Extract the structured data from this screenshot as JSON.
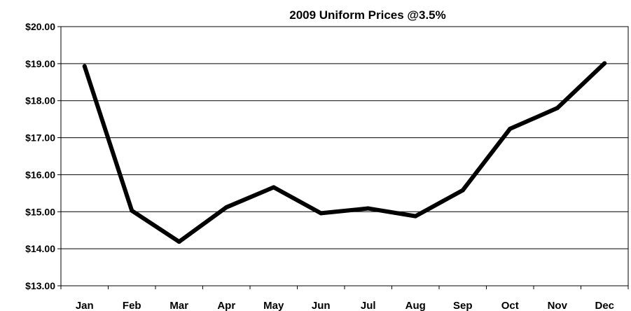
{
  "chart_data": {
    "type": "line",
    "title": "2009 Uniform Prices @3.5%",
    "xlabel": "",
    "ylabel": "",
    "categories": [
      "Jan",
      "Feb",
      "Mar",
      "Apr",
      "May",
      "Jun",
      "Jul",
      "Aug",
      "Sep",
      "Oct",
      "Nov",
      "Dec"
    ],
    "series": [
      {
        "values": [
          18.93,
          15.03,
          14.19,
          15.12,
          15.66,
          14.96,
          15.09,
          14.88,
          15.58,
          17.24,
          17.8,
          19.01
        ]
      }
    ],
    "ylim": [
      13,
      20
    ],
    "y_ticks": [
      "$13.00",
      "$14.00",
      "$15.00",
      "$16.00",
      "$17.00",
      "$18.00",
      "$19.00",
      "$20.00"
    ],
    "grid": true,
    "legend": "none",
    "line_color": "#000000"
  }
}
